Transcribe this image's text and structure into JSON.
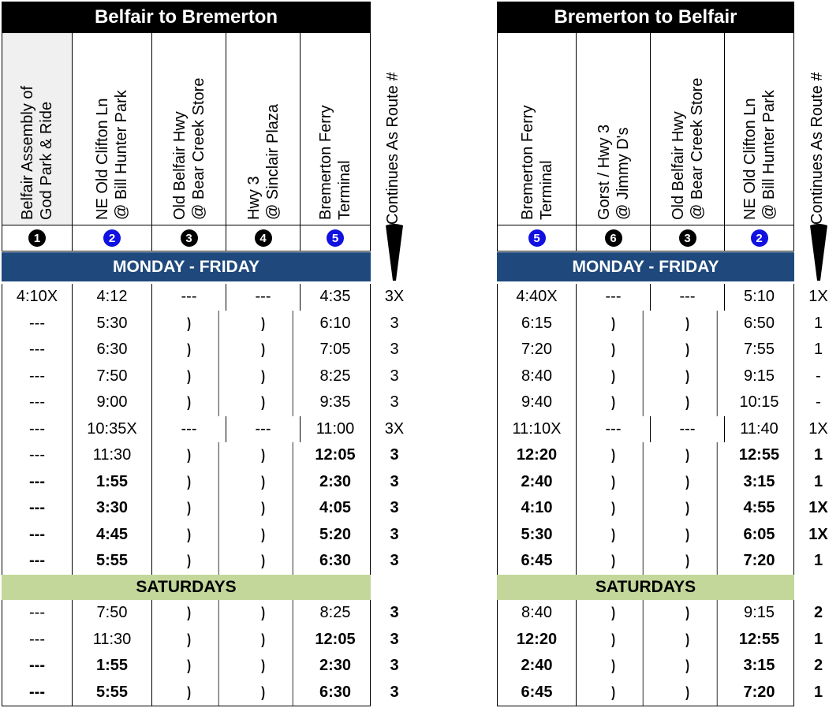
{
  "tables": [
    {
      "title": "Belfair to Bremerton",
      "stops": [
        {
          "line1": "Belfair Assembly of",
          "line2": "God Park & Ride",
          "num": "1",
          "style": "black",
          "grey": true
        },
        {
          "line1": "NE Old Clifton Ln",
          "line2": "@ Bill Hunter Park",
          "num": "2",
          "style": "blue",
          "grey": false
        },
        {
          "line1": "Old Belfair Hwy",
          "line2": "@ Bear Creek Store",
          "num": "3",
          "style": "black",
          "grey": false
        },
        {
          "line1": "Hwy 3",
          "line2": "@ Sinclair Plaza",
          "num": "4",
          "style": "black",
          "grey": false
        },
        {
          "line1": "Bremerton Ferry",
          "line2": "Terminal",
          "num": "5",
          "style": "blue",
          "grey": false
        }
      ],
      "continues_label": "Continues  As  Route #",
      "weekday_label": "MONDAY - FRIDAY",
      "weekday_rows": [
        {
          "cells": [
            "4:10X",
            "4:12",
            "---",
            "---",
            "4:35"
          ],
          "cont": "3X",
          "bold": [
            false,
            false,
            false,
            false,
            false,
            false
          ]
        },
        {
          "cells": [
            "---",
            "5:30",
            ")",
            ")",
            "6:10"
          ],
          "cont": "3",
          "bold": [
            false,
            false,
            false,
            false,
            false,
            false
          ]
        },
        {
          "cells": [
            "---",
            "6:30",
            ")",
            ")",
            "7:05"
          ],
          "cont": "3",
          "bold": [
            false,
            false,
            false,
            false,
            false,
            false
          ]
        },
        {
          "cells": [
            "---",
            "7:50",
            ")",
            ")",
            "8:25"
          ],
          "cont": "3",
          "bold": [
            false,
            false,
            false,
            false,
            false,
            false
          ]
        },
        {
          "cells": [
            "---",
            "9:00",
            ")",
            ")",
            "9:35"
          ],
          "cont": "3",
          "bold": [
            false,
            false,
            false,
            false,
            false,
            false
          ]
        },
        {
          "cells": [
            "---",
            "10:35X",
            "---",
            "---",
            "11:00"
          ],
          "cont": "3X",
          "bold": [
            false,
            false,
            false,
            false,
            false,
            false
          ]
        },
        {
          "cells": [
            "---",
            "11:30",
            ")",
            ")",
            "12:05"
          ],
          "cont": "3",
          "bold": [
            false,
            false,
            false,
            false,
            true,
            true
          ]
        },
        {
          "cells": [
            "---",
            "1:55",
            ")",
            ")",
            "2:30"
          ],
          "cont": "3",
          "bold": [
            true,
            true,
            false,
            false,
            true,
            true
          ]
        },
        {
          "cells": [
            "---",
            "3:30",
            ")",
            ")",
            "4:05"
          ],
          "cont": "3",
          "bold": [
            true,
            true,
            false,
            false,
            true,
            true
          ]
        },
        {
          "cells": [
            "---",
            "4:45",
            ")",
            ")",
            "5:20"
          ],
          "cont": "3",
          "bold": [
            true,
            true,
            false,
            false,
            true,
            true
          ]
        },
        {
          "cells": [
            "---",
            "5:55",
            ")",
            ")",
            "6:30"
          ],
          "cont": "3",
          "bold": [
            true,
            true,
            false,
            false,
            true,
            true
          ]
        }
      ],
      "saturday_label": "SATURDAYS",
      "saturday_rows": [
        {
          "cells": [
            "---",
            "7:50",
            ")",
            ")",
            "8:25"
          ],
          "cont": "3",
          "bold": [
            false,
            false,
            false,
            false,
            false,
            true
          ]
        },
        {
          "cells": [
            "---",
            "11:30",
            ")",
            ")",
            "12:05"
          ],
          "cont": "3",
          "bold": [
            false,
            false,
            false,
            false,
            true,
            true
          ]
        },
        {
          "cells": [
            "---",
            "1:55",
            ")",
            ")",
            "2:30"
          ],
          "cont": "3",
          "bold": [
            true,
            true,
            false,
            false,
            true,
            true
          ]
        },
        {
          "cells": [
            "---",
            "5:55",
            ")",
            ")",
            "6:30"
          ],
          "cont": "3",
          "bold": [
            true,
            true,
            false,
            false,
            true,
            true
          ]
        }
      ]
    },
    {
      "title": "Bremerton to Belfair",
      "stops": [
        {
          "line1": "Bremerton Ferry",
          "line2": "Terminal",
          "num": "5",
          "style": "blue",
          "grey": false
        },
        {
          "line1": "Gorst / Hwy 3",
          "line2": "@ Jimmy D's",
          "num": "6",
          "style": "black",
          "grey": false
        },
        {
          "line1": "Old Belfair Hwy",
          "line2": "@ Bear Creek Store",
          "num": "3",
          "style": "black",
          "grey": false
        },
        {
          "line1": "NE Old Clifton Ln",
          "line2": "@ Bill Hunter Park",
          "num": "2",
          "style": "blue",
          "grey": false
        }
      ],
      "continues_label": "Continues  As  Route #",
      "weekday_label": "MONDAY - FRIDAY",
      "weekday_rows": [
        {
          "cells": [
            "4:40X",
            "---",
            "---",
            "5:10"
          ],
          "cont": "1X",
          "bold": [
            false,
            false,
            false,
            false,
            false
          ]
        },
        {
          "cells": [
            "6:15",
            ")",
            ")",
            "6:50"
          ],
          "cont": "1",
          "bold": [
            false,
            false,
            false,
            false,
            false
          ]
        },
        {
          "cells": [
            "7:20",
            ")",
            ")",
            "7:55"
          ],
          "cont": "1",
          "bold": [
            false,
            false,
            false,
            false,
            false
          ]
        },
        {
          "cells": [
            "8:40",
            ")",
            ")",
            "9:15"
          ],
          "cont": "-",
          "bold": [
            false,
            false,
            false,
            false,
            false
          ]
        },
        {
          "cells": [
            "9:40",
            ")",
            ")",
            "10:15"
          ],
          "cont": "-",
          "bold": [
            false,
            false,
            false,
            false,
            false
          ]
        },
        {
          "cells": [
            "11:10X",
            "---",
            "---",
            "11:40"
          ],
          "cont": "1X",
          "bold": [
            false,
            false,
            false,
            false,
            false
          ]
        },
        {
          "cells": [
            "12:20",
            ")",
            ")",
            "12:55"
          ],
          "cont": "1",
          "bold": [
            true,
            false,
            false,
            true,
            true
          ]
        },
        {
          "cells": [
            "2:40",
            ")",
            ")",
            "3:15"
          ],
          "cont": "1",
          "bold": [
            true,
            false,
            false,
            true,
            true
          ]
        },
        {
          "cells": [
            "4:10",
            ")",
            ")",
            "4:55"
          ],
          "cont": "1X",
          "bold": [
            true,
            false,
            false,
            true,
            true
          ]
        },
        {
          "cells": [
            "5:30",
            ")",
            ")",
            "6:05"
          ],
          "cont": "1X",
          "bold": [
            true,
            false,
            false,
            true,
            true
          ]
        },
        {
          "cells": [
            "6:45",
            ")",
            ")",
            "7:20"
          ],
          "cont": "1",
          "bold": [
            true,
            false,
            false,
            true,
            true
          ]
        }
      ],
      "saturday_label": "SATURDAYS",
      "saturday_rows": [
        {
          "cells": [
            "8:40",
            ")",
            ")",
            "9:15"
          ],
          "cont": "2",
          "bold": [
            false,
            false,
            false,
            false,
            true
          ]
        },
        {
          "cells": [
            "12:20",
            ")",
            ")",
            "12:55"
          ],
          "cont": "1",
          "bold": [
            true,
            false,
            false,
            true,
            true
          ]
        },
        {
          "cells": [
            "2:40",
            ")",
            ")",
            "3:15"
          ],
          "cont": "2",
          "bold": [
            true,
            false,
            false,
            true,
            true
          ]
        },
        {
          "cells": [
            "6:45",
            ")",
            ")",
            "7:20"
          ],
          "cont": "1",
          "bold": [
            true,
            false,
            false,
            true,
            true
          ]
        }
      ]
    }
  ],
  "colors": {
    "weekday_band": "#1f497d",
    "saturday_band": "#c4d79b",
    "blue_stop": "#1010e0"
  }
}
